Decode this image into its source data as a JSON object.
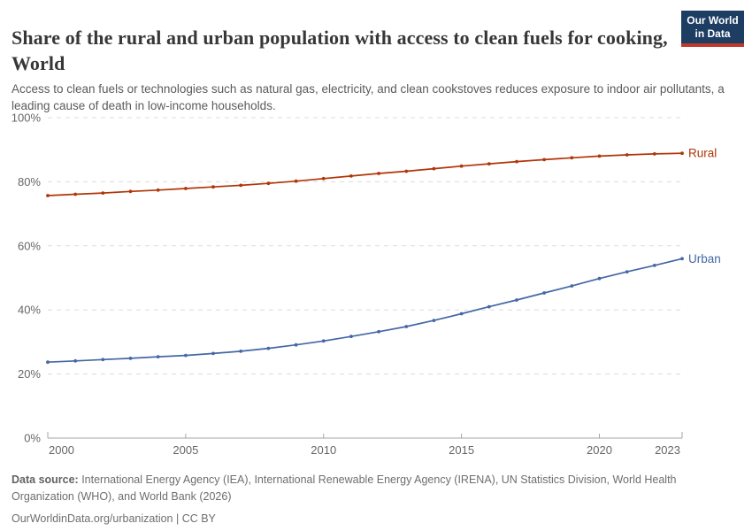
{
  "header": {
    "logo": {
      "line1": "Our World",
      "line2": "in Data",
      "bg_color": "#1d3d63",
      "accent_color": "#c0392b"
    }
  },
  "chart_data": {
    "type": "line",
    "title": "Share of the rural and urban population with access to clean fuels for cooking, World",
    "subtitle": "Access to clean fuels or technologies such as natural gas, electricity, and clean cookstoves reduces exposure to indoor air pollutants, a leading cause of death in low-income households.",
    "x": [
      2000,
      2001,
      2002,
      2003,
      2004,
      2005,
      2006,
      2007,
      2008,
      2009,
      2010,
      2011,
      2012,
      2013,
      2014,
      2015,
      2016,
      2017,
      2018,
      2019,
      2020,
      2021,
      2022,
      2023
    ],
    "series": [
      {
        "name": "Rural",
        "color": "#b13507",
        "values": [
          75.7,
          76.1,
          76.5,
          77.0,
          77.4,
          77.9,
          78.4,
          78.9,
          79.5,
          80.2,
          81.0,
          81.8,
          82.6,
          83.3,
          84.1,
          84.9,
          85.6,
          86.3,
          86.9,
          87.5,
          88.0,
          88.4,
          88.7,
          88.9
        ]
      },
      {
        "name": "Urban",
        "color": "#4467a5",
        "values": [
          23.7,
          24.1,
          24.5,
          24.9,
          25.4,
          25.8,
          26.4,
          27.1,
          28.0,
          29.1,
          30.3,
          31.7,
          33.2,
          34.8,
          36.7,
          38.8,
          41.0,
          43.1,
          45.3,
          47.5,
          49.8,
          51.9,
          53.9,
          56.0
        ]
      }
    ],
    "xlabel": "",
    "ylabel": "",
    "xlim": [
      2000,
      2023
    ],
    "ylim": [
      0,
      100
    ],
    "xticks": [
      2000,
      2005,
      2010,
      2015,
      2020,
      2023
    ],
    "yticks": [
      0,
      20,
      40,
      60,
      80,
      100
    ],
    "ytick_suffix": "%",
    "grid": "horizontal-dashed",
    "legend_position": "line-end-labels"
  },
  "footer": {
    "source_label": "Data source:",
    "source_text": " International Energy Agency (IEA), International Renewable Energy Agency (IRENA), UN Statistics Division, World Health Organization (WHO), and World Bank (2026)",
    "citation": "OurWorldinData.org/urbanization | CC BY"
  },
  "colors": {
    "title_text": "#373737",
    "subtitle_text": "#5b5b5b",
    "axis_text": "#666666",
    "gridline": "#dcdcdc",
    "axis_line": "#a5a5a5",
    "footer_text": "#6e6e6e"
  }
}
